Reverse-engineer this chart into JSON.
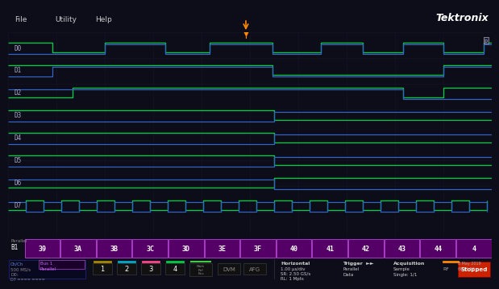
{
  "bg_color": "#0d0d1a",
  "screen_bg": "#020208",
  "green": "#00cc44",
  "blue": "#3366cc",
  "orange": "#ff8800",
  "white": "#ffffff",
  "purple_seg": "#aa33bb",
  "purple_seg_bg": "#440055",
  "channel_labels": [
    "D0",
    "D1",
    "D2",
    "D3",
    "D4",
    "D5",
    "D6",
    "D7"
  ],
  "bus_labels": [
    "39",
    "3A",
    "3B",
    "3C",
    "3D",
    "3E",
    "3F",
    "40",
    "41",
    "42",
    "43",
    "44",
    "4"
  ],
  "menu_items": [
    "File",
    "Utility",
    "Help"
  ],
  "btn_colors": [
    "#aa8800",
    "#00aacc",
    "#ff4488",
    "#00cc44"
  ],
  "bus_name": "Bus 1\nParallel",
  "horizontal_info": "Horizontal\n1.00 μs/div\nSR: 2.50 GS/s\nRL: 1 Mpts",
  "trigger_info": "Trigger  ►►\nParallel\nData",
  "acq_info": "Acquisition\nSample\nSingle: 1/1",
  "date_info": "8 May 2019\n09:11:50",
  "stopped_text": "Stopped",
  "rf_text": "RF",
  "tektronix": "Tektronix"
}
